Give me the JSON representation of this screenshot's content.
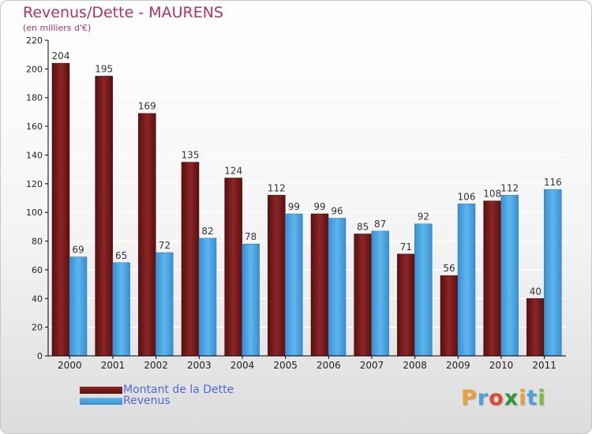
{
  "chart": {
    "title": "Revenus/Dette - MAURENS",
    "subtitle": "(en milliers d'€)"
  },
  "legend": {
    "dette_label": "Montant de la Dette",
    "revenus_label": "Revenus"
  },
  "logo": {
    "letters": [
      "P",
      "r",
      "o",
      "x",
      "i",
      "t",
      "i"
    ],
    "colors": [
      "#e8a23a",
      "#4aa3d8",
      "#e04a2c",
      "#2e9a3c",
      "#e8a23a",
      "#4aa3d8",
      "#7bbf3a"
    ]
  },
  "colors": {
    "dette": "#7a1c1c",
    "revenus": "#4aa3e0",
    "axis": "#000000",
    "grid": "#ffffff",
    "title": "#b5325a",
    "legend_text": "#4b6bd9"
  },
  "chart_data": {
    "type": "bar",
    "title": "Revenus/Dette - MAURENS",
    "subtitle": "(en milliers d'€)",
    "categories": [
      "2000",
      "2001",
      "2002",
      "2003",
      "2004",
      "2005",
      "2006",
      "2007",
      "2008",
      "2009",
      "2010",
      "2011"
    ],
    "series": [
      {
        "name": "Montant de la Dette",
        "color": "#7a1c1c",
        "values": [
          204,
          195,
          169,
          135,
          124,
          112,
          99,
          85,
          71,
          56,
          108,
          40
        ]
      },
      {
        "name": "Revenus",
        "color": "#4aa3e0",
        "values": [
          69,
          65,
          72,
          82,
          78,
          99,
          96,
          87,
          92,
          106,
          112,
          116
        ]
      }
    ],
    "ylim": [
      0,
      220
    ],
    "yticks": [
      0,
      20,
      40,
      60,
      80,
      100,
      120,
      140,
      160,
      180,
      200,
      220
    ],
    "grid": true,
    "legend_position": "bottom-left"
  }
}
